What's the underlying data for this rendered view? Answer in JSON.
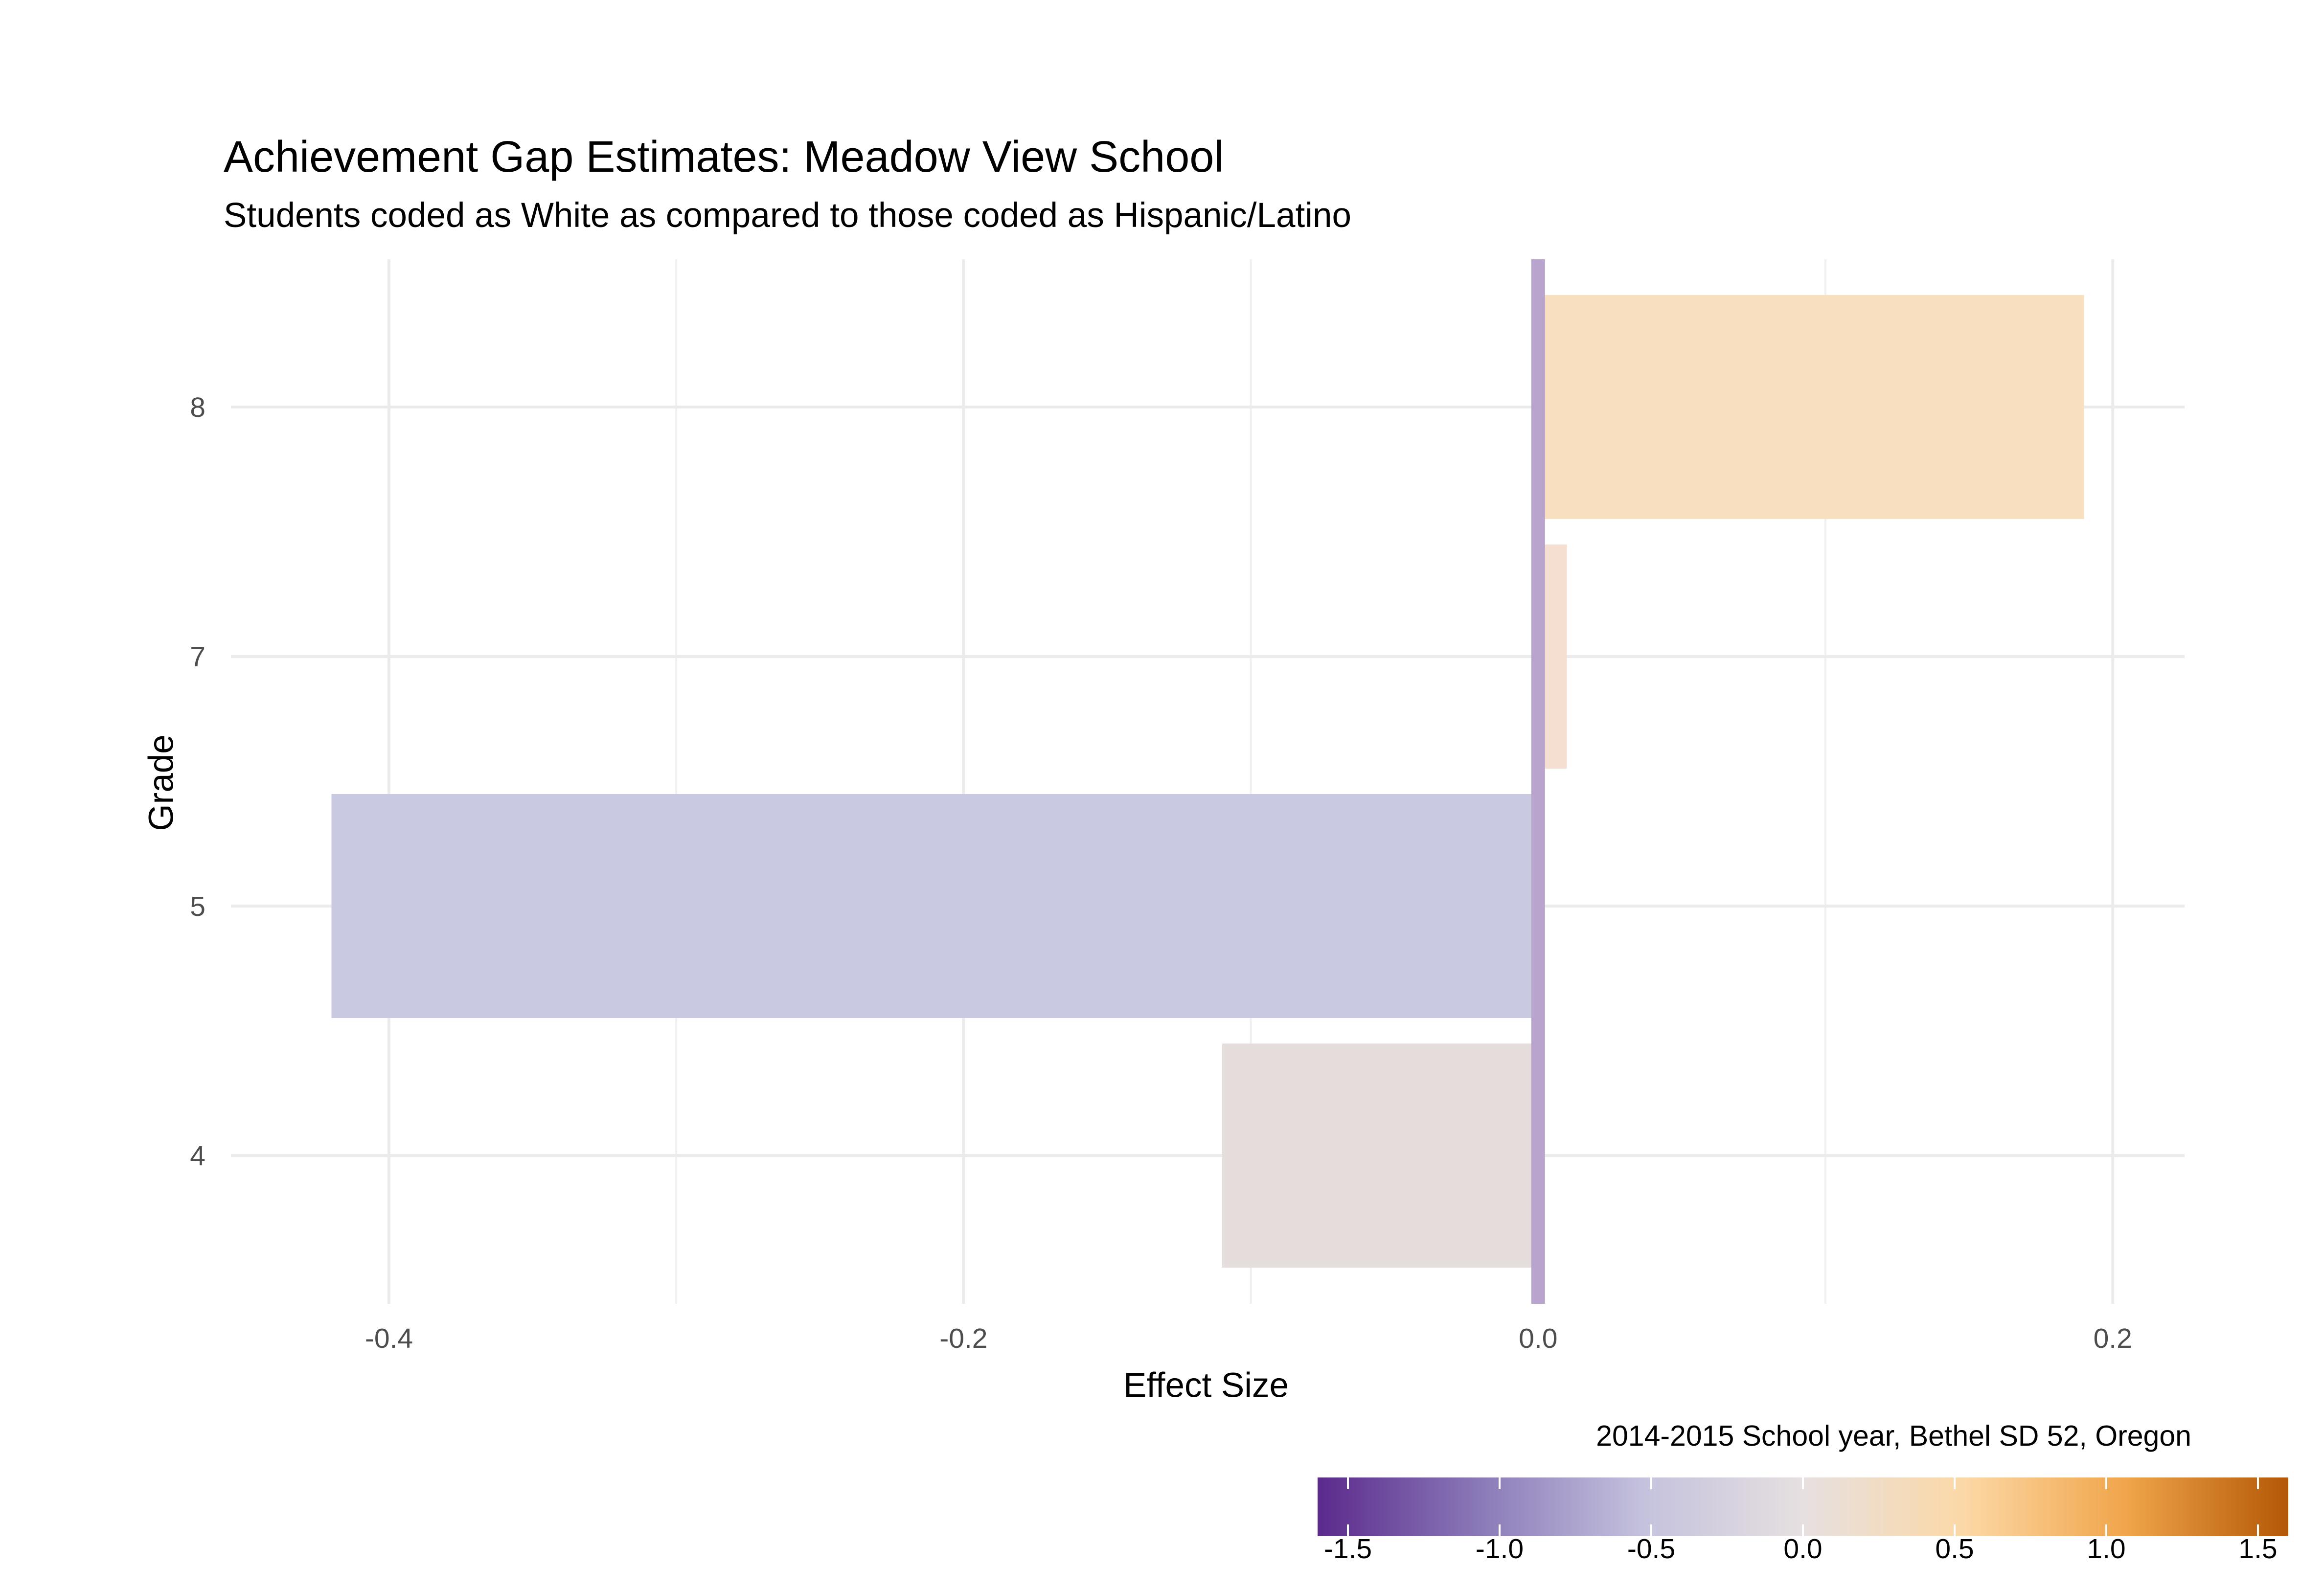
{
  "chart_data": {
    "type": "bar",
    "orientation": "horizontal",
    "title": "Achievement Gap Estimates: Meadow View School",
    "subtitle": "Students coded as White as compared to those coded as Hispanic/Latino",
    "xlabel": "Effect Size",
    "ylabel": "Grade",
    "caption": "2014-2015 School year, Bethel SD 52, Oregon",
    "categories": [
      "4",
      "5",
      "7",
      "8"
    ],
    "values": [
      -0.11,
      -0.42,
      0.01,
      0.19
    ],
    "bar_colors": [
      "#e5dcdc",
      "#c9c9e2",
      "#f4dfd1",
      "#f7dfc0"
    ],
    "xlim": [
      -0.455,
      0.225
    ],
    "xticks": [
      -0.4,
      -0.2,
      0.0,
      0.2
    ],
    "xtick_labels": [
      "-0.4",
      "-0.2",
      "0.0",
      "0.2"
    ],
    "grid": true,
    "reference_line": {
      "x": 0,
      "color": "#b9a4cd"
    },
    "colorbar": {
      "position": "bottom",
      "range": [
        -1.6,
        1.6
      ],
      "ticks": [
        -1.5,
        -1.0,
        -0.5,
        0.0,
        0.5,
        1.0,
        1.5
      ],
      "tick_labels": [
        "-1.5",
        "-1.0",
        "-0.5",
        "0.0",
        "0.5",
        "1.0",
        "1.5"
      ],
      "colors": [
        "#5b2a8c",
        "#8a79b8",
        "#c4c1dd",
        "#e6e0e0",
        "#fcd8a6",
        "#f0a54a",
        "#b35806"
      ]
    }
  }
}
